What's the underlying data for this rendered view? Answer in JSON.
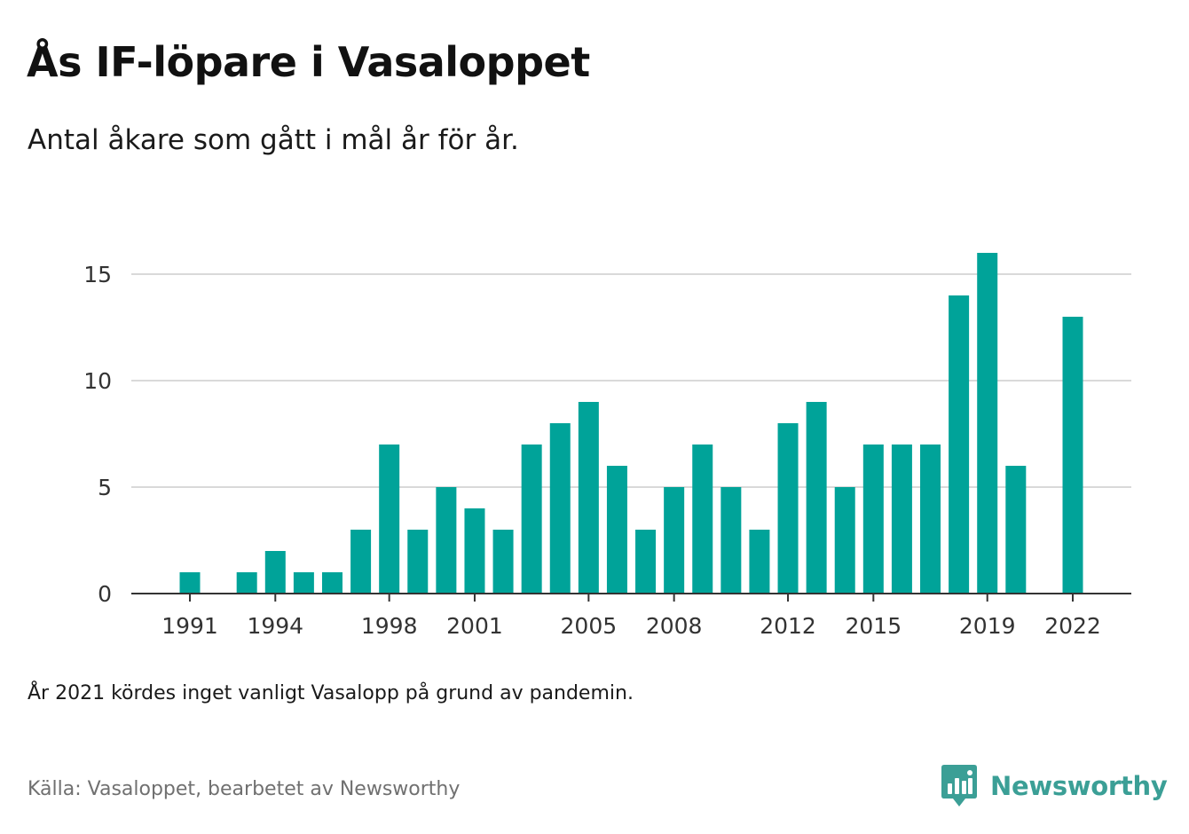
{
  "title": "Ås IF-löpare i Vasaloppet",
  "subtitle": "Antal åkare som gått i mål år för år.",
  "note": "År 2021 kördes inget vanligt Vasalopp på grund av pandemin.",
  "source": "Källa: Vasaloppet, bearbetet av Newsworthy",
  "brand": {
    "name": "Newsworthy",
    "color": "#3b9f96",
    "icon": "newsworthy-logo-icon"
  },
  "chart_data": {
    "type": "bar",
    "title": "Ås IF-löpare i Vasaloppet",
    "xlabel": "",
    "ylabel": "",
    "bar_color": "#00a399",
    "grid": true,
    "ylim": [
      0,
      16
    ],
    "yticks": [
      0,
      5,
      10,
      15
    ],
    "xticks": [
      1991,
      1994,
      1998,
      2001,
      2005,
      2008,
      2012,
      2015,
      2019,
      2022
    ],
    "x": [
      1991,
      1992,
      1993,
      1994,
      1995,
      1996,
      1997,
      1998,
      1999,
      2000,
      2001,
      2002,
      2003,
      2004,
      2005,
      2006,
      2007,
      2008,
      2009,
      2010,
      2011,
      2012,
      2013,
      2014,
      2015,
      2016,
      2017,
      2018,
      2019,
      2020,
      2021,
      2022
    ],
    "values": [
      1,
      0,
      1,
      2,
      1,
      1,
      3,
      7,
      3,
      5,
      4,
      3,
      7,
      8,
      9,
      6,
      3,
      5,
      7,
      5,
      3,
      8,
      9,
      5,
      7,
      7,
      7,
      14,
      16,
      6,
      0,
      13
    ]
  }
}
